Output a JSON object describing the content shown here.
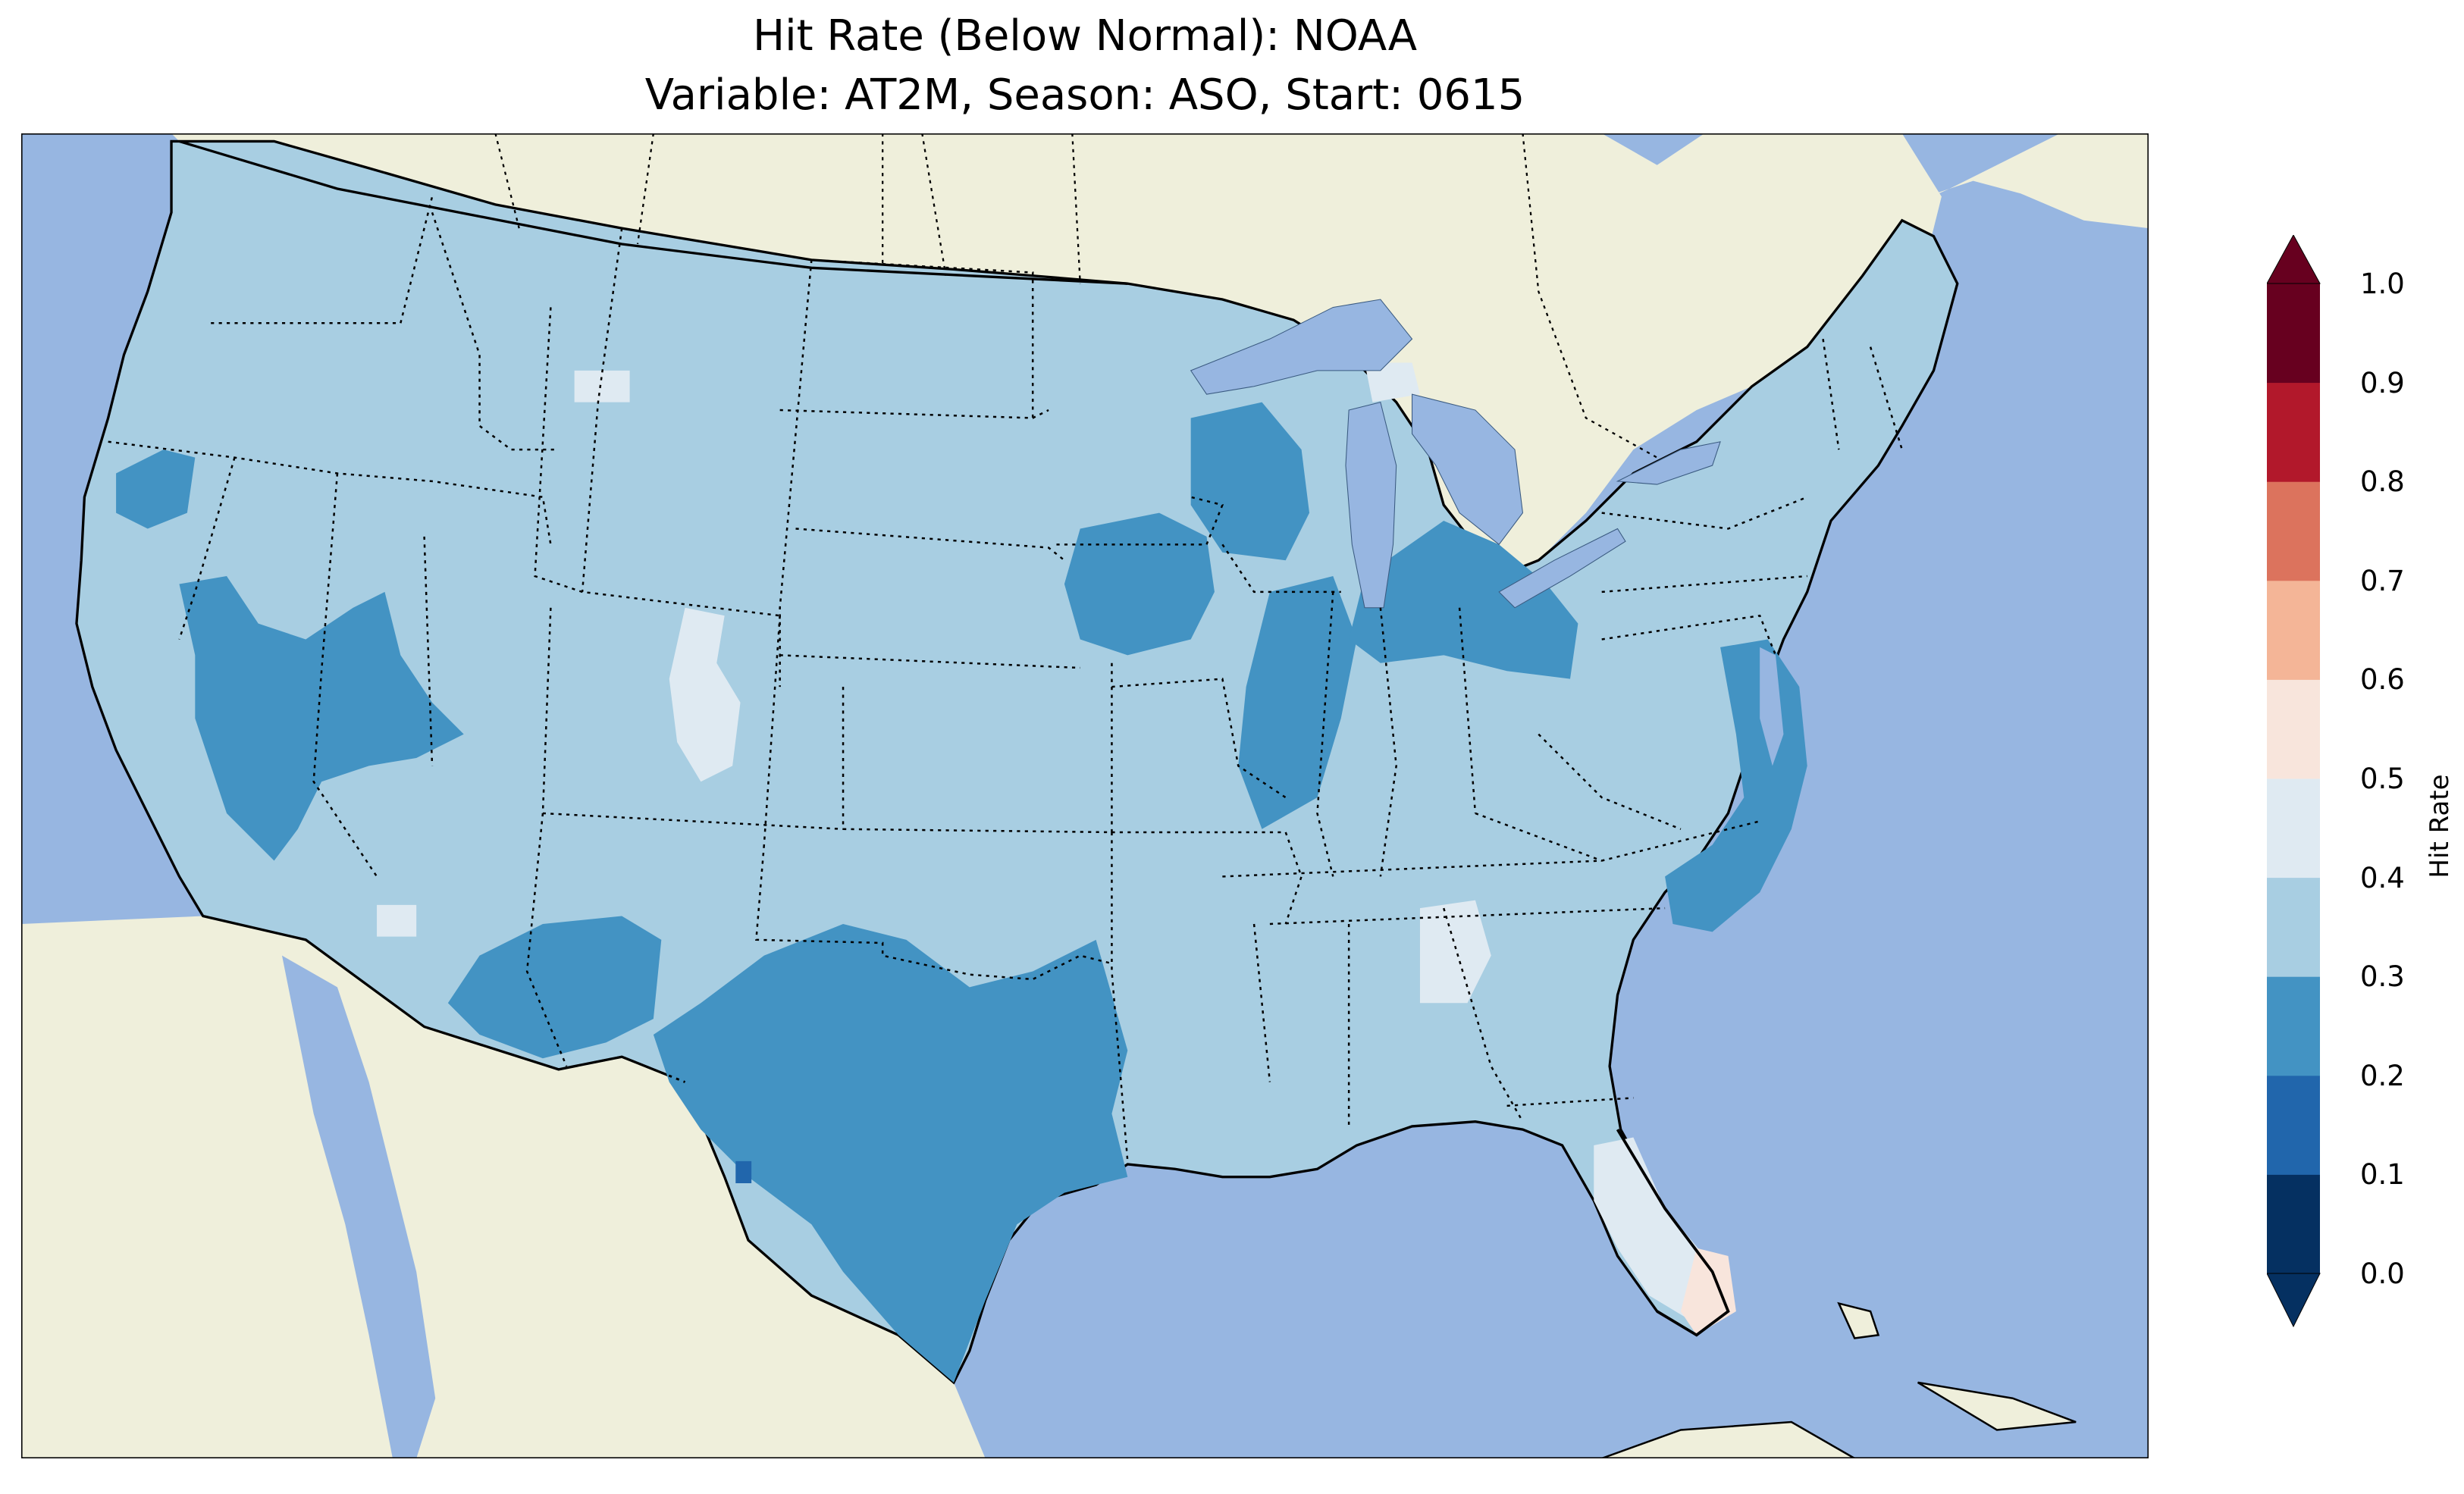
{
  "map": {
    "title_line1": "Hit Rate (Below Normal): NOAA",
    "title_line2": "Variable: AT2M, Season: ASO, Start: 0615",
    "colors": {
      "ocean": "#97b6e1",
      "land": "#efefdb",
      "lakes": "#97b6e1",
      "coast": "#000000",
      "borders": "#000000"
    },
    "regions": [
      {
        "name": "pacific-northwest-basin",
        "value_class": "0.2-0.3"
      },
      {
        "name": "great-basin-nevada",
        "value_class": "0.2-0.3"
      },
      {
        "name": "new-mexico-southwest",
        "value_class": "0.2-0.3"
      },
      {
        "name": "texas-oklahoma",
        "value_class": "0.2-0.3"
      },
      {
        "name": "upper-midwest",
        "value_class": "0.2-0.3"
      },
      {
        "name": "illinois-missouri",
        "value_class": "0.2-0.3"
      },
      {
        "name": "michigan-ohio",
        "value_class": "0.2-0.3"
      },
      {
        "name": "chesapeake-carolina-coast",
        "value_class": "0.2-0.3"
      },
      {
        "name": "colorado-rockies",
        "value_class": "0.4-0.5"
      },
      {
        "name": "alabama-georgia",
        "value_class": "0.4-0.5"
      },
      {
        "name": "florida-peninsula",
        "value_class": "0.4-0.5"
      },
      {
        "name": "south-florida",
        "value_class": "0.5-0.6"
      },
      {
        "name": "south-texas-tip",
        "value_class": "0.1-0.2"
      }
    ]
  },
  "colorbar": {
    "label": "Hit Rate",
    "ticks": [
      "0.0",
      "0.1",
      "0.2",
      "0.3",
      "0.4",
      "0.5",
      "0.6",
      "0.7",
      "0.8",
      "0.9",
      "1.0"
    ],
    "bins": [
      {
        "range": "0.0-0.1",
        "color": "#053061"
      },
      {
        "range": "0.1-0.2",
        "color": "#2166ac"
      },
      {
        "range": "0.2-0.3",
        "color": "#4393c3"
      },
      {
        "range": "0.3-0.4",
        "color": "#a8cee2"
      },
      {
        "range": "0.4-0.5",
        "color": "#dfeaf2"
      },
      {
        "range": "0.5-0.6",
        "color": "#f8e5dc"
      },
      {
        "range": "0.6-0.7",
        "color": "#f4b597"
      },
      {
        "range": "0.7-0.8",
        "color": "#dc735d"
      },
      {
        "range": "0.8-0.9",
        "color": "#b2182b"
      },
      {
        "range": "0.9-1.0",
        "color": "#67001f"
      }
    ],
    "under_color": "#053061",
    "over_color": "#67001f"
  }
}
